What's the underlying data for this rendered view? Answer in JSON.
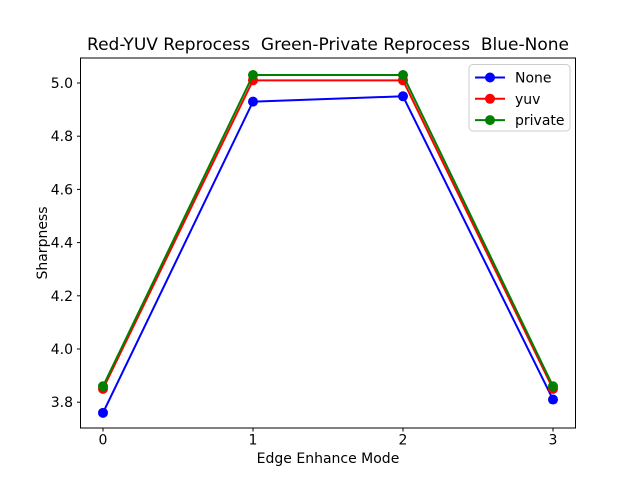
{
  "chart_data": {
    "type": "line",
    "title": "Red-YUV Reprocess  Green-Private Reprocess  Blue-None",
    "xlabel": "Edge Enhance Mode",
    "ylabel": "Sharpness",
    "x": [
      0,
      1,
      2,
      3
    ],
    "xticks": [
      0,
      1,
      2,
      3
    ],
    "yticks": [
      3.8,
      4.0,
      4.2,
      4.4,
      4.6,
      4.8,
      5.0
    ],
    "xlim": [
      -0.15,
      3.15
    ],
    "ylim": [
      3.703,
      5.094
    ],
    "grid": false,
    "legend_position": "upper right",
    "series": [
      {
        "name": "None",
        "color": "#0000ff",
        "marker": "circle",
        "values": [
          3.76,
          4.93,
          4.95,
          3.81
        ]
      },
      {
        "name": "yuv",
        "color": "#ff0000",
        "marker": "circle",
        "values": [
          3.85,
          5.01,
          5.01,
          3.85
        ]
      },
      {
        "name": "private",
        "color": "#008000",
        "marker": "circle",
        "values": [
          3.86,
          5.03,
          5.03,
          3.86
        ]
      }
    ],
    "colors": {
      "spine": "#000000",
      "background": "#ffffff",
      "legend_border": "#cccccc",
      "legend_background": "#ffffff"
    }
  }
}
